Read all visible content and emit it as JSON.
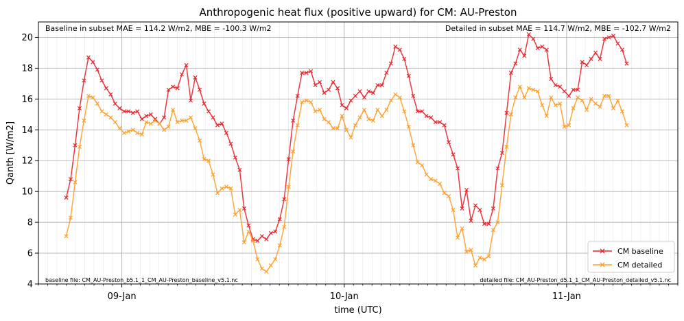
{
  "chart_data": {
    "type": "line",
    "title": "Anthropogenic heat flux (positive upward) for CM: AU-Preston",
    "xlabel": "time (UTC)",
    "ylabel": "Qanth [W/m2]",
    "ylim": [
      4,
      21
    ],
    "yticks": [
      4,
      6,
      8,
      10,
      12,
      14,
      16,
      18,
      20
    ],
    "xlim": [
      -0.375,
      2.5
    ],
    "xtick_positions": [
      0,
      1,
      2
    ],
    "xticks": [
      "09-Jan",
      "10-Jan",
      "11-Jan"
    ],
    "x_unit": "days since 09-Jan 00:00",
    "grid": true,
    "legend_position": "lower right",
    "annotations": {
      "left": "Baseline in subset MAE = 114.2 W/m2, MBE = -100.3 W/m2",
      "right": "Detailed in subset MAE = 114.7 W/m2, MBE = -102.7 W/m2",
      "bottom_left": "baseline file: CM_AU-Preston_b5.1_1_CM_AU-Preston_baseline_v5.1.nc",
      "bottom_right": "detailed file: CM_AU-Preston_d5.1_1_CM_AU-Preston_detailed_v5.1.nc"
    },
    "series": [
      {
        "name": "CM baseline",
        "color": "#e8242b",
        "points": [
          [
            -0.25,
            9.6
          ],
          [
            -0.23,
            10.8
          ],
          [
            -0.21,
            13.0
          ],
          [
            -0.19,
            15.4
          ],
          [
            -0.17,
            17.2
          ],
          [
            -0.15,
            18.7
          ],
          [
            -0.13,
            18.4
          ],
          [
            -0.11,
            17.9
          ],
          [
            -0.09,
            17.2
          ],
          [
            -0.07,
            16.7
          ],
          [
            -0.05,
            16.3
          ],
          [
            -0.03,
            15.7
          ],
          [
            -0.01,
            15.4
          ],
          [
            0.01,
            15.2
          ],
          [
            0.03,
            15.2
          ],
          [
            0.05,
            15.1
          ],
          [
            0.07,
            15.2
          ],
          [
            0.09,
            14.7
          ],
          [
            0.11,
            14.9
          ],
          [
            0.13,
            15.0
          ],
          [
            0.15,
            14.7
          ],
          [
            0.17,
            14.4
          ],
          [
            0.19,
            14.8
          ],
          [
            0.21,
            16.6
          ],
          [
            0.23,
            16.8
          ],
          [
            0.25,
            16.7
          ],
          [
            0.27,
            17.6
          ],
          [
            0.29,
            18.2
          ],
          [
            0.31,
            15.9
          ],
          [
            0.33,
            17.4
          ],
          [
            0.35,
            16.6
          ],
          [
            0.37,
            15.7
          ],
          [
            0.39,
            15.2
          ],
          [
            0.41,
            14.8
          ],
          [
            0.43,
            14.3
          ],
          [
            0.45,
            14.4
          ],
          [
            0.47,
            13.8
          ],
          [
            0.49,
            13.1
          ],
          [
            0.51,
            12.2
          ],
          [
            0.53,
            11.4
          ],
          [
            0.55,
            8.9
          ],
          [
            0.57,
            7.8
          ],
          [
            0.59,
            6.9
          ],
          [
            0.61,
            6.8
          ],
          [
            0.63,
            7.1
          ],
          [
            0.65,
            6.9
          ],
          [
            0.67,
            7.3
          ],
          [
            0.69,
            7.4
          ],
          [
            0.71,
            8.2
          ],
          [
            0.73,
            9.5
          ],
          [
            0.75,
            12.1
          ],
          [
            0.77,
            14.6
          ],
          [
            0.79,
            16.2
          ],
          [
            0.81,
            17.7
          ],
          [
            0.83,
            17.7
          ],
          [
            0.85,
            17.8
          ],
          [
            0.87,
            16.9
          ],
          [
            0.89,
            17.1
          ],
          [
            0.91,
            16.4
          ],
          [
            0.93,
            16.6
          ],
          [
            0.95,
            17.1
          ],
          [
            0.97,
            16.7
          ],
          [
            0.99,
            15.6
          ],
          [
            1.01,
            15.4
          ],
          [
            1.03,
            15.9
          ],
          [
            1.05,
            16.2
          ],
          [
            1.07,
            16.5
          ],
          [
            1.09,
            16.1
          ],
          [
            1.11,
            16.5
          ],
          [
            1.13,
            16.4
          ],
          [
            1.15,
            16.9
          ],
          [
            1.17,
            16.9
          ],
          [
            1.19,
            17.7
          ],
          [
            1.21,
            18.3
          ],
          [
            1.23,
            19.4
          ],
          [
            1.25,
            19.2
          ],
          [
            1.27,
            18.6
          ],
          [
            1.29,
            17.5
          ],
          [
            1.31,
            16.2
          ],
          [
            1.33,
            15.2
          ],
          [
            1.35,
            15.2
          ],
          [
            1.37,
            14.9
          ],
          [
            1.39,
            14.8
          ],
          [
            1.41,
            14.5
          ],
          [
            1.43,
            14.5
          ],
          [
            1.45,
            14.3
          ],
          [
            1.47,
            13.2
          ],
          [
            1.49,
            12.4
          ],
          [
            1.51,
            11.5
          ],
          [
            1.53,
            8.9
          ],
          [
            1.55,
            10.1
          ],
          [
            1.57,
            8.1
          ],
          [
            1.59,
            9.1
          ],
          [
            1.61,
            8.8
          ],
          [
            1.63,
            7.9
          ],
          [
            1.65,
            7.9
          ],
          [
            1.67,
            8.9
          ],
          [
            1.69,
            11.5
          ],
          [
            1.71,
            12.5
          ],
          [
            1.73,
            15.1
          ],
          [
            1.75,
            17.7
          ],
          [
            1.77,
            18.3
          ],
          [
            1.79,
            19.2
          ],
          [
            1.81,
            18.8
          ],
          [
            1.83,
            20.2
          ],
          [
            1.85,
            19.9
          ],
          [
            1.87,
            19.3
          ],
          [
            1.89,
            19.4
          ],
          [
            1.91,
            19.2
          ],
          [
            1.93,
            17.3
          ],
          [
            1.95,
            16.9
          ],
          [
            1.97,
            16.8
          ],
          [
            1.99,
            16.5
          ],
          [
            2.01,
            16.2
          ],
          [
            2.03,
            16.6
          ],
          [
            2.05,
            16.6
          ],
          [
            2.07,
            18.4
          ],
          [
            2.09,
            18.2
          ],
          [
            2.11,
            18.6
          ],
          [
            2.13,
            19.0
          ],
          [
            2.15,
            18.6
          ],
          [
            2.17,
            19.9
          ],
          [
            2.19,
            20.0
          ],
          [
            2.21,
            20.1
          ],
          [
            2.23,
            19.6
          ],
          [
            2.25,
            19.2
          ],
          [
            2.27,
            18.3
          ]
        ]
      },
      {
        "name": "CM detailed",
        "color": "#ff9d28",
        "points": [
          [
            -0.25,
            7.1
          ],
          [
            -0.23,
            8.3
          ],
          [
            -0.21,
            10.6
          ],
          [
            -0.19,
            12.9
          ],
          [
            -0.17,
            14.6
          ],
          [
            -0.15,
            16.2
          ],
          [
            -0.13,
            16.1
          ],
          [
            -0.11,
            15.7
          ],
          [
            -0.09,
            15.2
          ],
          [
            -0.07,
            15.0
          ],
          [
            -0.05,
            14.8
          ],
          [
            -0.03,
            14.5
          ],
          [
            -0.01,
            14.1
          ],
          [
            0.01,
            13.8
          ],
          [
            0.03,
            13.9
          ],
          [
            0.05,
            14.0
          ],
          [
            0.07,
            13.8
          ],
          [
            0.09,
            13.7
          ],
          [
            0.11,
            14.5
          ],
          [
            0.13,
            14.4
          ],
          [
            0.15,
            14.6
          ],
          [
            0.17,
            14.4
          ],
          [
            0.19,
            14.0
          ],
          [
            0.21,
            14.2
          ],
          [
            0.23,
            15.3
          ],
          [
            0.25,
            14.5
          ],
          [
            0.27,
            14.6
          ],
          [
            0.29,
            14.6
          ],
          [
            0.31,
            14.8
          ],
          [
            0.33,
            14.1
          ],
          [
            0.35,
            13.3
          ],
          [
            0.37,
            12.1
          ],
          [
            0.39,
            12.0
          ],
          [
            0.41,
            11.1
          ],
          [
            0.43,
            9.9
          ],
          [
            0.45,
            10.2
          ],
          [
            0.47,
            10.3
          ],
          [
            0.49,
            10.2
          ],
          [
            0.51,
            8.5
          ],
          [
            0.53,
            8.8
          ],
          [
            0.55,
            6.7
          ],
          [
            0.57,
            7.4
          ],
          [
            0.59,
            6.8
          ],
          [
            0.61,
            5.6
          ],
          [
            0.63,
            5.0
          ],
          [
            0.65,
            4.8
          ],
          [
            0.67,
            5.2
          ],
          [
            0.69,
            5.6
          ],
          [
            0.71,
            6.5
          ],
          [
            0.73,
            7.7
          ],
          [
            0.75,
            10.3
          ],
          [
            0.77,
            12.6
          ],
          [
            0.79,
            14.3
          ],
          [
            0.81,
            15.8
          ],
          [
            0.83,
            15.9
          ],
          [
            0.85,
            15.8
          ],
          [
            0.87,
            15.2
          ],
          [
            0.89,
            15.3
          ],
          [
            0.91,
            14.7
          ],
          [
            0.93,
            14.5
          ],
          [
            0.95,
            14.1
          ],
          [
            0.97,
            14.1
          ],
          [
            0.99,
            14.9
          ],
          [
            1.01,
            14.0
          ],
          [
            1.03,
            13.5
          ],
          [
            1.05,
            14.3
          ],
          [
            1.07,
            14.8
          ],
          [
            1.09,
            15.3
          ],
          [
            1.11,
            14.7
          ],
          [
            1.13,
            14.6
          ],
          [
            1.15,
            15.3
          ],
          [
            1.17,
            14.9
          ],
          [
            1.19,
            15.3
          ],
          [
            1.21,
            15.9
          ],
          [
            1.23,
            16.3
          ],
          [
            1.25,
            16.1
          ],
          [
            1.27,
            15.2
          ],
          [
            1.29,
            14.2
          ],
          [
            1.31,
            13.0
          ],
          [
            1.33,
            11.9
          ],
          [
            1.35,
            11.7
          ],
          [
            1.37,
            11.1
          ],
          [
            1.39,
            10.8
          ],
          [
            1.41,
            10.7
          ],
          [
            1.43,
            10.5
          ],
          [
            1.45,
            9.9
          ],
          [
            1.47,
            9.7
          ],
          [
            1.49,
            8.8
          ],
          [
            1.51,
            7.0
          ],
          [
            1.53,
            7.6
          ],
          [
            1.55,
            6.1
          ],
          [
            1.57,
            6.2
          ],
          [
            1.59,
            5.2
          ],
          [
            1.61,
            5.7
          ],
          [
            1.63,
            5.6
          ],
          [
            1.65,
            5.8
          ],
          [
            1.67,
            7.5
          ],
          [
            1.69,
            8.0
          ],
          [
            1.71,
            10.4
          ],
          [
            1.73,
            12.9
          ],
          [
            1.75,
            15.0
          ],
          [
            1.77,
            16.1
          ],
          [
            1.79,
            16.8
          ],
          [
            1.81,
            16.1
          ],
          [
            1.83,
            16.7
          ],
          [
            1.85,
            16.6
          ],
          [
            1.87,
            16.5
          ],
          [
            1.89,
            15.6
          ],
          [
            1.91,
            14.9
          ],
          [
            1.93,
            16.1
          ],
          [
            1.95,
            15.6
          ],
          [
            1.97,
            15.7
          ],
          [
            1.99,
            14.2
          ],
          [
            2.01,
            14.3
          ],
          [
            2.03,
            15.4
          ],
          [
            2.05,
            16.1
          ],
          [
            2.07,
            15.9
          ],
          [
            2.09,
            15.3
          ],
          [
            2.11,
            16.0
          ],
          [
            2.13,
            15.7
          ],
          [
            2.15,
            15.5
          ],
          [
            2.17,
            16.2
          ],
          [
            2.19,
            16.2
          ],
          [
            2.21,
            15.4
          ],
          [
            2.23,
            15.9
          ],
          [
            2.25,
            15.2
          ],
          [
            2.27,
            14.3
          ]
        ]
      }
    ]
  }
}
